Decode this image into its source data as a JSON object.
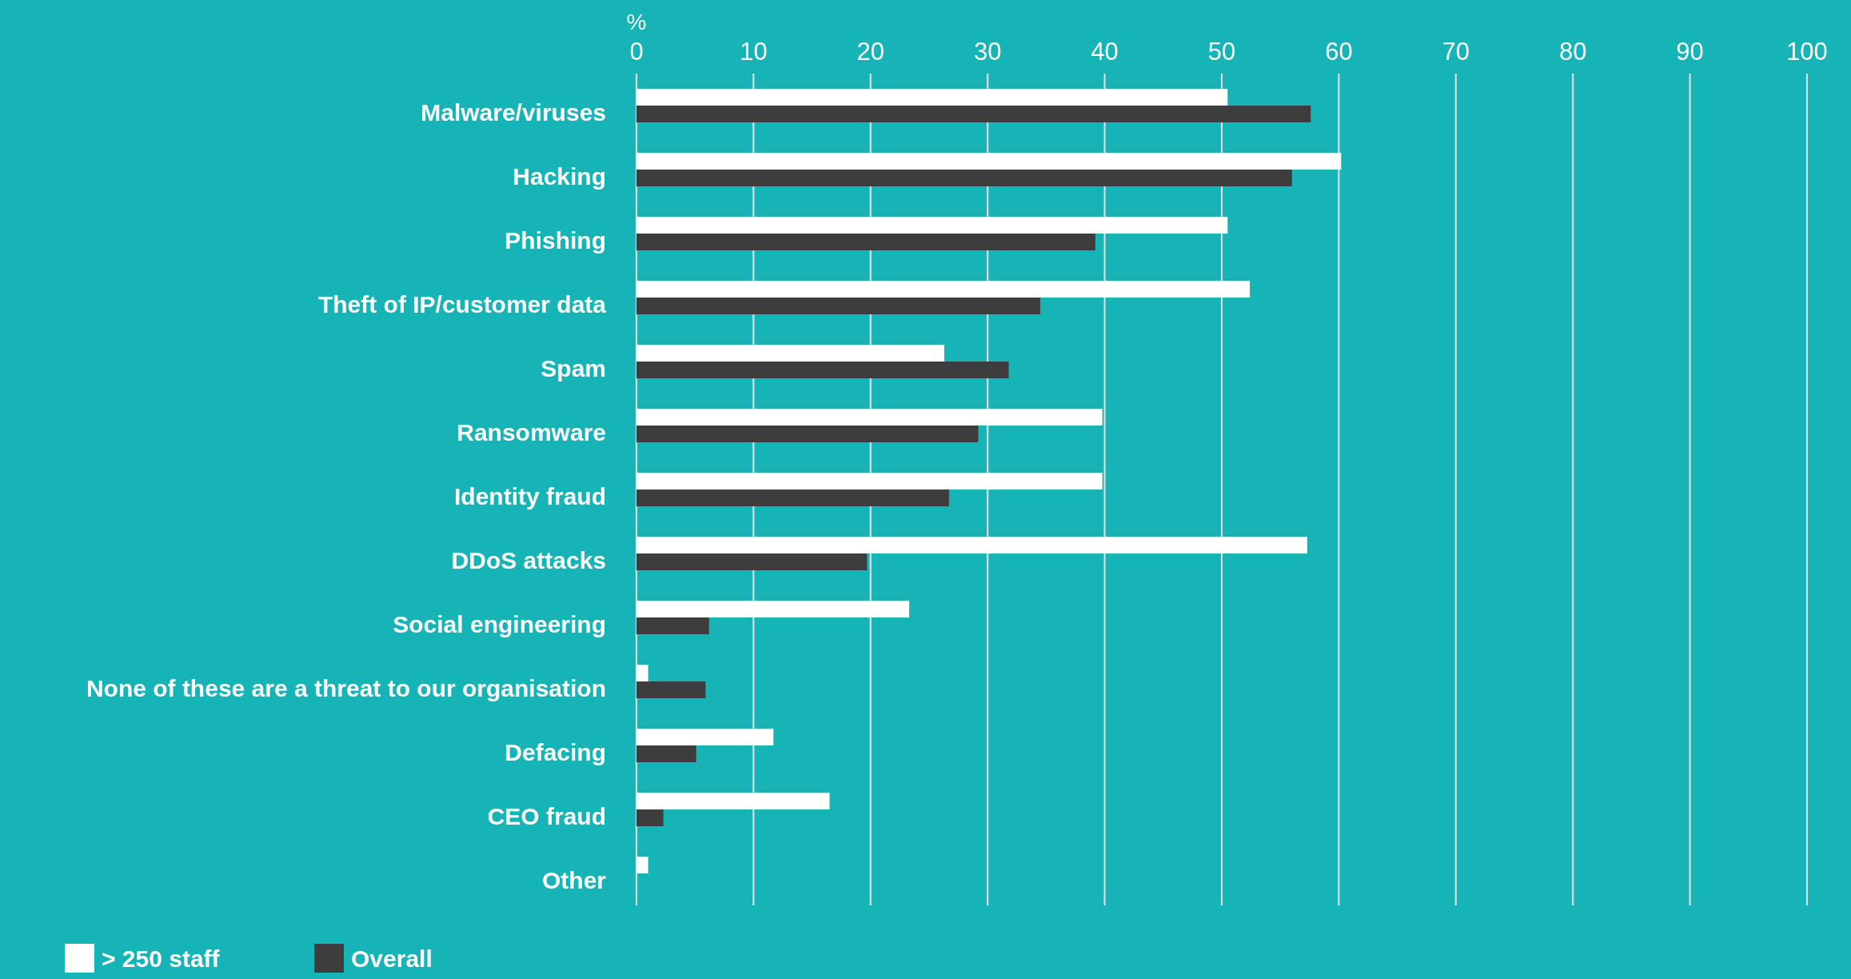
{
  "chart_data": {
    "type": "bar",
    "orientation": "horizontal",
    "xlabel": "%",
    "categories": [
      "Malware/viruses",
      "Hacking",
      "Phishing",
      "Theft of IP/customer data",
      "Spam",
      "Ransomware",
      "Identity fraud",
      "DDoS attacks",
      "Social engineering",
      "None of these are a threat to our organisation",
      "Defacing",
      "CEO fraud",
      "Other"
    ],
    "series": [
      {
        "name": "> 250 staff",
        "color": "#ffffff",
        "values": [
          50.5,
          60.2,
          50.5,
          52.4,
          26.3,
          39.8,
          39.8,
          57.3,
          23.3,
          1.0,
          11.7,
          16.5,
          1.0
        ]
      },
      {
        "name": "Overall",
        "color": "#3d3d3d",
        "values": [
          57.6,
          56.0,
          39.2,
          34.5,
          31.8,
          29.2,
          26.7,
          19.7,
          6.2,
          5.9,
          5.1,
          2.3,
          null
        ]
      }
    ],
    "xlim": [
      0,
      100
    ],
    "xticks": [
      0,
      10,
      20,
      30,
      40,
      50,
      60,
      70,
      80,
      90,
      100
    ],
    "grid": "x",
    "legend": "bottom left"
  }
}
